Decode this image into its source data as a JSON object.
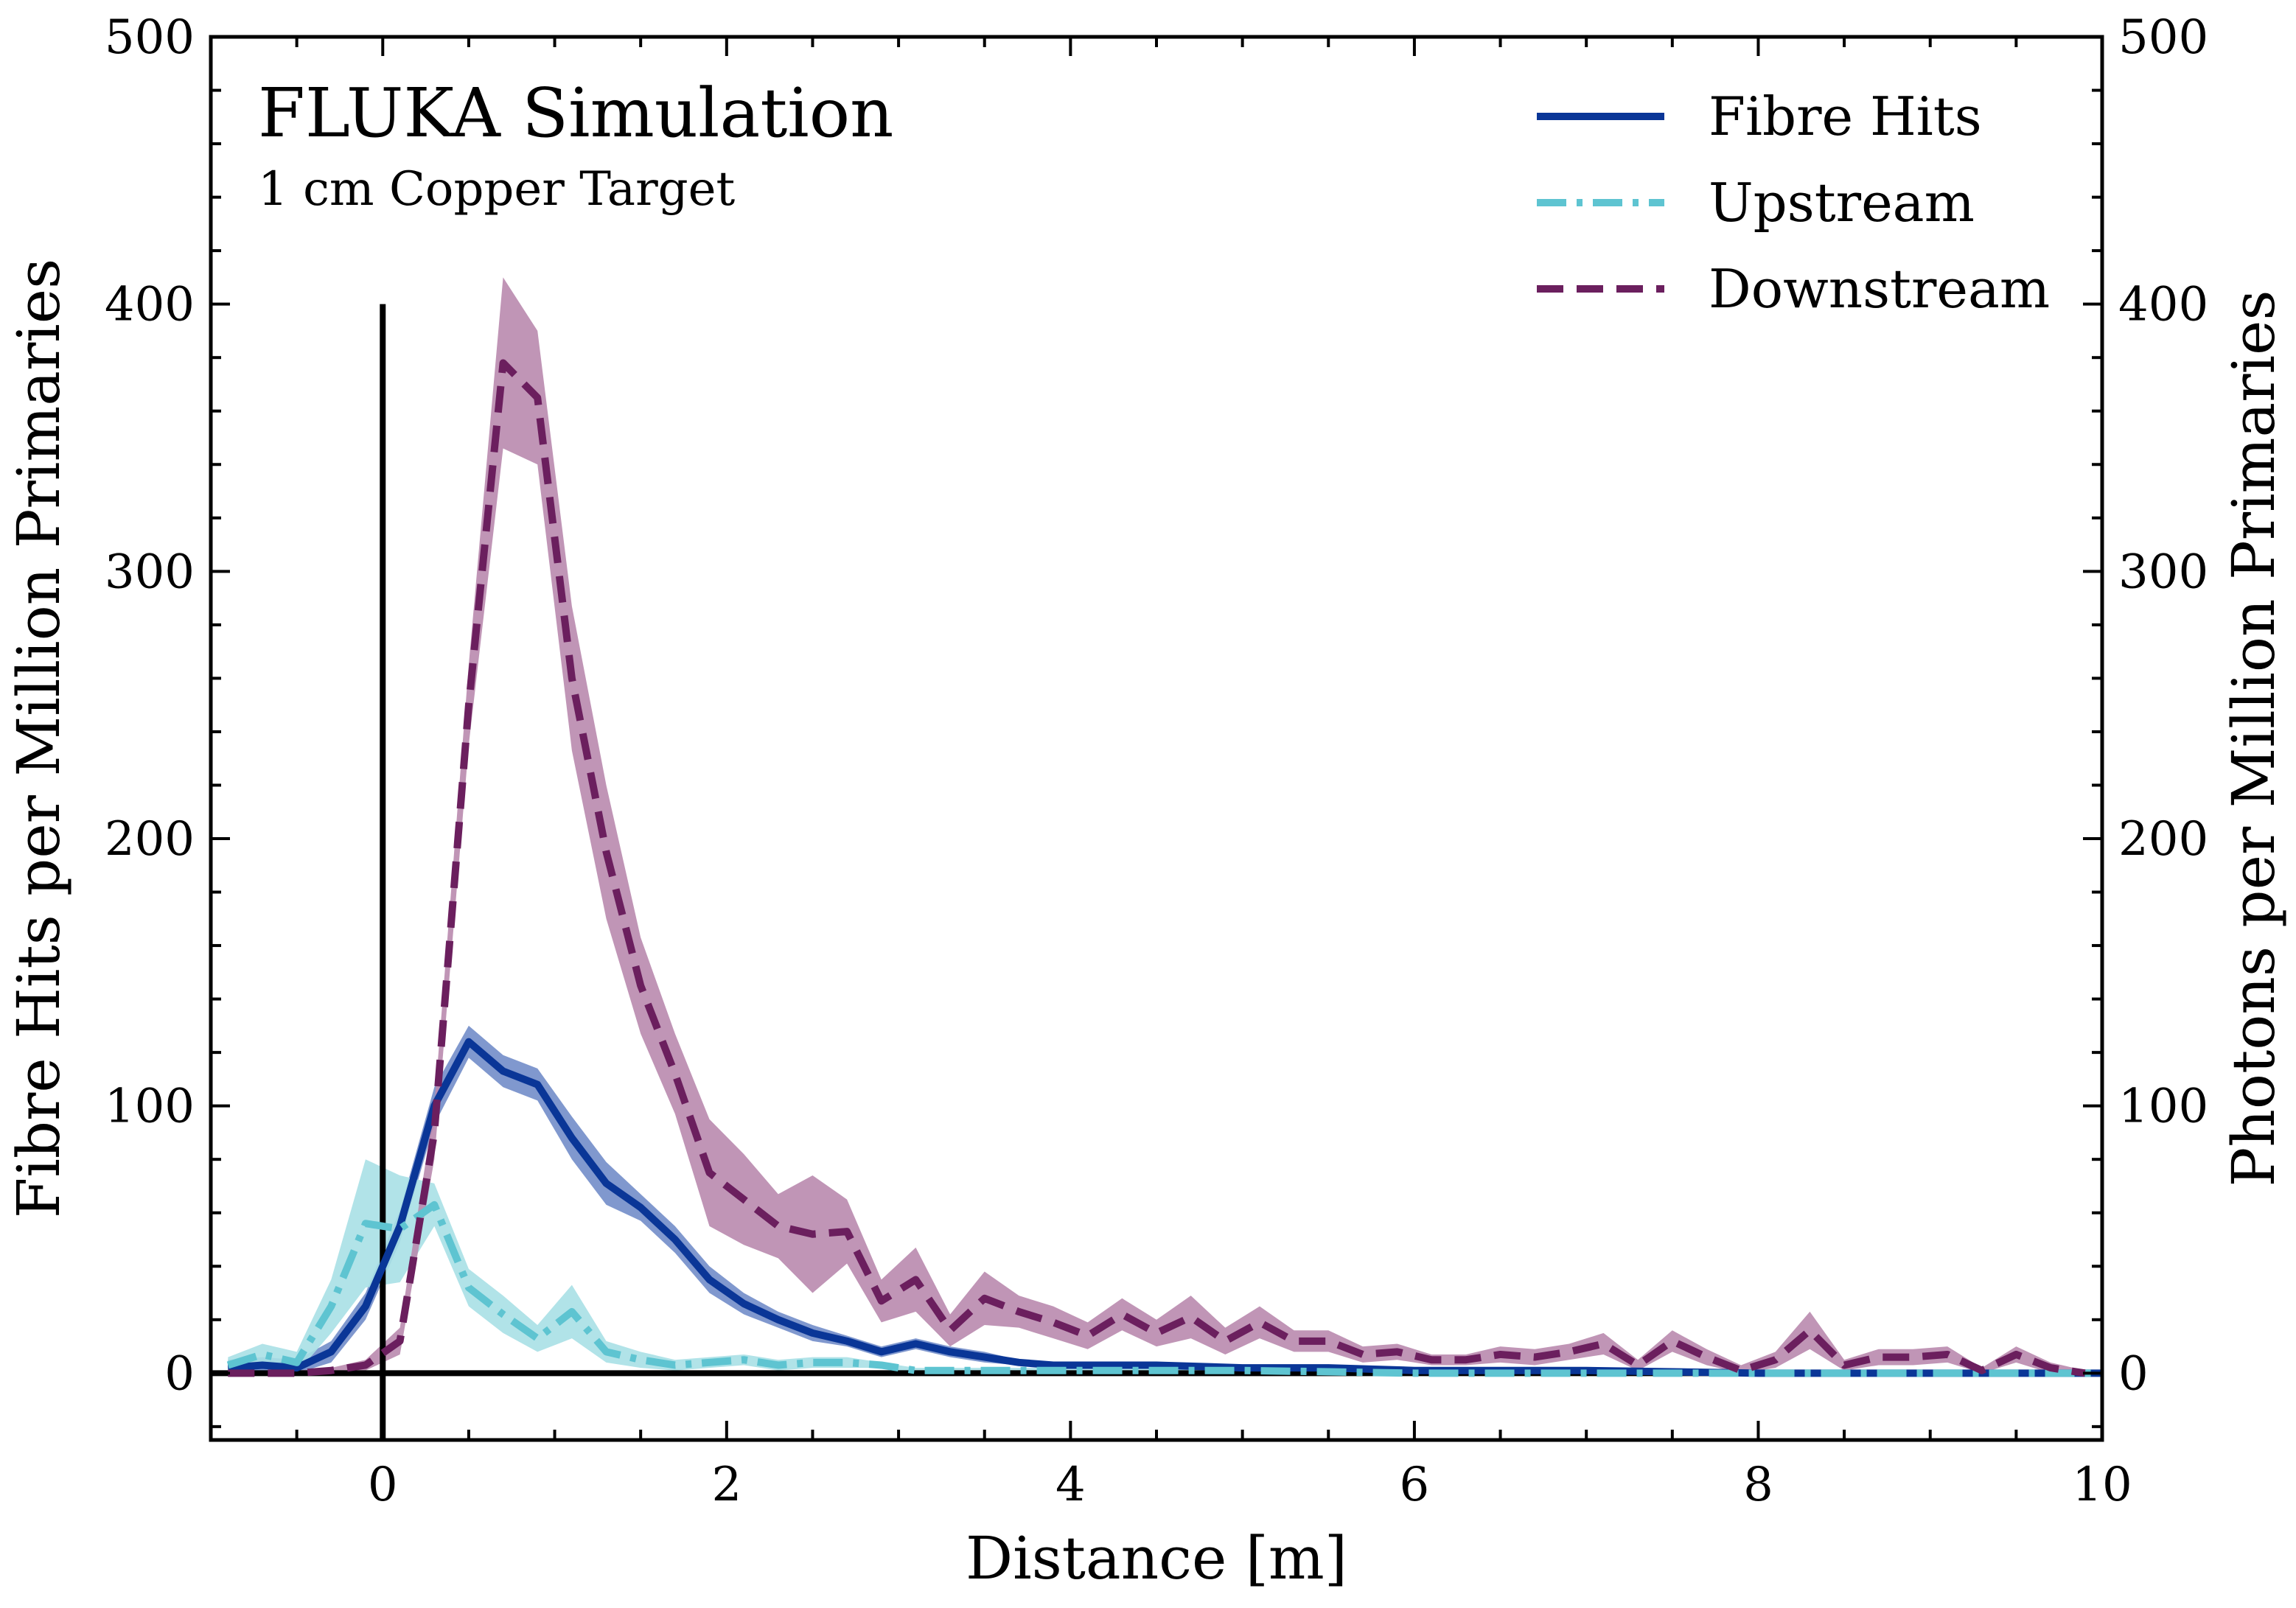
{
  "chart_data": {
    "type": "line",
    "annotation": {
      "title": "FLUKA Simulation",
      "subtitle": "1 cm Copper Target"
    },
    "xlabel": "Distance [m]",
    "ylabel_left": "Fibre Hits per Million Primaries",
    "ylabel_right": "Photons per Million Primaries",
    "xlim": [
      -1,
      10
    ],
    "ylim": [
      -25,
      500
    ],
    "x_ticks": [
      0,
      2,
      4,
      6,
      8,
      10
    ],
    "x_tick_labels": [
      "0",
      "2",
      "4",
      "6",
      "8",
      "10"
    ],
    "y_ticks": [
      0,
      100,
      200,
      300,
      400,
      500
    ],
    "y_tick_labels": [
      "0",
      "100",
      "200",
      "300",
      "400",
      "500"
    ],
    "y_tick_labels_right": [
      "0",
      "100",
      "200",
      "300",
      "400",
      "500"
    ],
    "target_marker": {
      "x": 0,
      "y_from": 0,
      "y_to": 400
    },
    "legend": {
      "position": "top-right",
      "entries": [
        "Fibre Hits",
        "Upstream",
        "Downstream"
      ]
    },
    "colors": {
      "fibre": "#0a3697",
      "fibre_band": "#6a86c6",
      "upstream": "#5ec4d1",
      "upstream_band": "#a9e0e6",
      "downstream": "#6b1f5e",
      "downstream_band": "#b98aae"
    },
    "series": [
      {
        "name": "Fibre Hits",
        "style": "solid",
        "x": [
          -0.9,
          -0.7,
          -0.5,
          -0.3,
          -0.1,
          0.1,
          0.3,
          0.5,
          0.7,
          0.9,
          1.1,
          1.3,
          1.5,
          1.7,
          1.9,
          2.1,
          2.3,
          2.5,
          2.7,
          2.9,
          3.1,
          3.3,
          3.5,
          3.7,
          3.9,
          4.1,
          4.5,
          5.0,
          5.5,
          6.0,
          7.0,
          8.0,
          9.0,
          10.0
        ],
        "y": [
          2,
          3,
          2,
          8,
          25,
          55,
          100,
          124,
          113,
          108,
          88,
          71,
          62,
          50,
          35,
          26,
          20,
          15,
          12,
          8,
          11,
          8,
          6,
          4,
          3,
          3,
          3,
          2,
          2,
          1,
          1,
          0,
          0,
          0
        ],
        "band": [
          3,
          3,
          3,
          4,
          5,
          6,
          7,
          6,
          6,
          6,
          8,
          8,
          5,
          5,
          5,
          4,
          3,
          3,
          2,
          2,
          2,
          2,
          2,
          1,
          1,
          1,
          1,
          1,
          1,
          1,
          1,
          0.5,
          0.5,
          0.5
        ]
      },
      {
        "name": "Upstream",
        "style": "dashdot",
        "x": [
          -0.9,
          -0.7,
          -0.5,
          -0.3,
          -0.1,
          0.1,
          0.3,
          0.5,
          0.7,
          0.9,
          1.1,
          1.3,
          1.5,
          1.7,
          1.9,
          2.1,
          2.3,
          2.5,
          2.7,
          2.9,
          3.1,
          3.5,
          4.0,
          5.0,
          6.0,
          7.0,
          8.0,
          9.0,
          10.0
        ],
        "y": [
          3,
          7,
          4,
          25,
          56,
          54,
          63,
          32,
          22,
          13,
          23,
          8,
          5,
          3,
          4,
          5,
          3,
          4,
          4,
          3,
          1,
          1,
          1,
          1,
          0,
          0,
          0,
          0,
          0
        ],
        "band": [
          3,
          4,
          4,
          10,
          24,
          20,
          8,
          7,
          7,
          5,
          10,
          4,
          3,
          2,
          2,
          2,
          2,
          2,
          2,
          1,
          1,
          1,
          1,
          1,
          0.5,
          0.5,
          0.5,
          0.5,
          0.5
        ]
      },
      {
        "name": "Downstream",
        "style": "dashed",
        "x": [
          -0.9,
          -0.7,
          -0.5,
          -0.3,
          -0.1,
          0.1,
          0.3,
          0.5,
          0.7,
          0.9,
          1.1,
          1.3,
          1.5,
          1.7,
          1.9,
          2.1,
          2.3,
          2.5,
          2.7,
          2.9,
          3.1,
          3.3,
          3.5,
          3.7,
          3.9,
          4.1,
          4.3,
          4.5,
          4.7,
          4.9,
          5.1,
          5.3,
          5.5,
          5.7,
          5.9,
          6.1,
          6.3,
          6.5,
          6.7,
          6.9,
          7.1,
          7.3,
          7.5,
          7.7,
          7.9,
          8.1,
          8.3,
          8.5,
          8.7,
          8.9,
          9.1,
          9.3,
          9.5,
          9.7,
          9.9
        ],
        "y": [
          0,
          0,
          0,
          1,
          3,
          12,
          90,
          250,
          378,
          365,
          260,
          195,
          145,
          112,
          75,
          65,
          55,
          52,
          53,
          27,
          35,
          16,
          28,
          23,
          19,
          14,
          22,
          15,
          21,
          12,
          19,
          12,
          12,
          7,
          8,
          5,
          5,
          7,
          6,
          8,
          11,
          3,
          12,
          6,
          1,
          5,
          16,
          3,
          6,
          6,
          7,
          1,
          7,
          2,
          0
        ],
        "band": [
          1,
          1,
          1,
          1,
          2,
          5,
          10,
          15,
          32,
          25,
          27,
          25,
          18,
          15,
          20,
          17,
          12,
          22,
          12,
          8,
          12,
          6,
          10,
          6,
          6,
          5,
          6,
          5,
          8,
          5,
          6,
          4,
          4,
          3,
          3,
          2,
          2,
          3,
          3,
          3,
          4,
          2,
          4,
          3,
          2,
          3,
          7,
          2,
          3,
          3,
          3,
          1,
          3,
          2,
          1
        ]
      }
    ]
  }
}
